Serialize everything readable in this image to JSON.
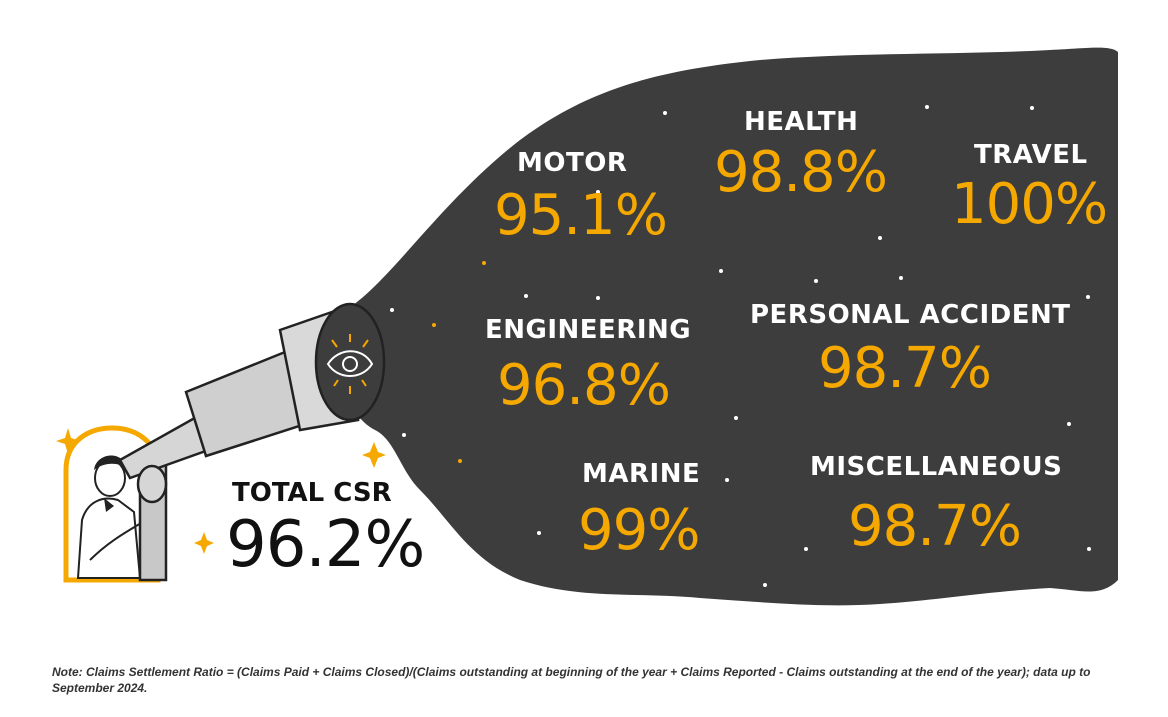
{
  "colors": {
    "sky": "#3d3d3d",
    "accent": "#f5a800",
    "text_dark": "#111111"
  },
  "illustration": {
    "icon_names": [
      "telescope-icon",
      "eye-icon",
      "person-icon",
      "sparkle-icon",
      "star-icon"
    ]
  },
  "total": {
    "label": "TOTAL CSR",
    "value": "96.2%"
  },
  "categories": [
    {
      "label": "MOTOR",
      "value": "95.1%"
    },
    {
      "label": "HEALTH",
      "value": "98.8%"
    },
    {
      "label": "TRAVEL",
      "value": "100%"
    },
    {
      "label": "ENGINEERING",
      "value": "96.8%"
    },
    {
      "label": "PERSONAL ACCIDENT",
      "value": "98.7%"
    },
    {
      "label": "MARINE",
      "value": "99%"
    },
    {
      "label": "MISCELLANEOUS",
      "value": "98.7%"
    }
  ],
  "note": "Note: Claims Settlement Ratio = (Claims Paid + Claims Closed)/(Claims outstanding at beginning of the year + Claims Reported - Claims outstanding at the end of the year); data up to September 2024."
}
